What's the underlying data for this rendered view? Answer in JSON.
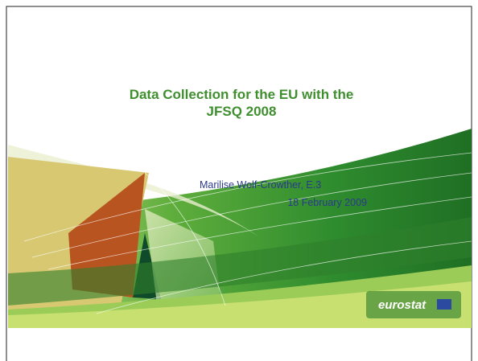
{
  "slide": {
    "title_lines": [
      "Data Collection for the EU with the",
      "JFSQ  2008"
    ],
    "author": "Marilise Wolf-Crowther, E.3",
    "date": "18 February 2009",
    "logo": "eurostat"
  }
}
